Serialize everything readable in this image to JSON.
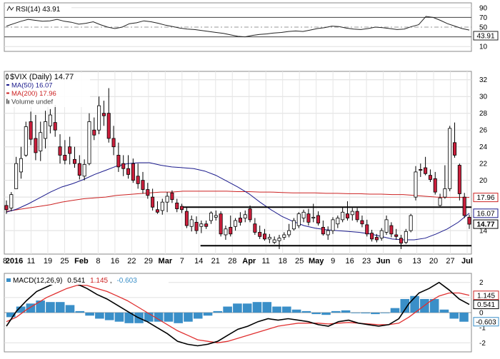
{
  "chart_data": {
    "type": "candlestick",
    "symbol_label": "$VIX (Daily) 14.77",
    "x_tick_labels": [
      "8",
      "2016",
      "11",
      "19",
      "25",
      "Feb",
      "8",
      "16",
      "22",
      "29",
      "Mar",
      "7",
      "14",
      "21",
      "28",
      "Apr",
      "11",
      "18",
      "25",
      "May",
      "9",
      "16",
      "23",
      "Jun",
      "6",
      "13",
      "20",
      "27",
      "Jul"
    ],
    "price_axis": {
      "ticks": [
        32,
        30,
        28,
        26,
        24,
        22,
        20,
        18,
        16,
        14
      ],
      "range": [
        11.2,
        33
      ]
    },
    "price_markers": [
      {
        "label": "17.96",
        "value": 17.96,
        "color": "#cc2222"
      },
      {
        "label": "16.07",
        "value": 16.07,
        "color": "#1a1a8c"
      },
      {
        "label": "14.77",
        "value": 14.77,
        "color": "#000000"
      }
    ],
    "moving_averages": [
      {
        "name": "MA(50) 16.07",
        "color": "#1a1a8c",
        "values": [
          16.2,
          16.6,
          17.2,
          17.9,
          18.6,
          19.2,
          19.6,
          20.1,
          20.7,
          21.2,
          21.7,
          22.0,
          22.1,
          22.1,
          21.8,
          21.6,
          21.5,
          21.4,
          21.1,
          20.6,
          19.9,
          19.2,
          18.4,
          17.4,
          16.5,
          15.7,
          15.1,
          14.6,
          14.3,
          14.1,
          14.0,
          13.9,
          13.8,
          13.6,
          13.3,
          13.0,
          12.9,
          12.9,
          13.1,
          13.6,
          14.2,
          15.0,
          16.07
        ]
      },
      {
        "name": "MA(200) 17.96",
        "color": "#cc2222",
        "values": [
          16.3,
          16.5,
          16.7,
          16.9,
          17.1,
          17.4,
          17.6,
          17.8,
          17.9,
          18.0,
          18.2,
          18.3,
          18.4,
          18.5,
          18.6,
          18.6,
          18.7,
          18.7,
          18.7,
          18.7,
          18.7,
          18.65,
          18.65,
          18.6,
          18.6,
          18.55,
          18.5,
          18.5,
          18.5,
          18.45,
          18.45,
          18.4,
          18.4,
          18.35,
          18.35,
          18.3,
          18.3,
          18.2,
          18.1,
          18.0,
          17.96,
          17.96,
          17.96
        ]
      }
    ],
    "candles": [
      {
        "o": 17.0,
        "h": 17.6,
        "l": 16.0,
        "c": 16.5
      },
      {
        "o": 16.7,
        "h": 18.6,
        "l": 16.3,
        "c": 18.3
      },
      {
        "o": 19.0,
        "h": 22.8,
        "l": 19.0,
        "c": 22.0
      },
      {
        "o": 21.0,
        "h": 24.0,
        "l": 20.2,
        "c": 22.6
      },
      {
        "o": 23.0,
        "h": 27.0,
        "l": 22.8,
        "c": 26.4
      },
      {
        "o": 27.0,
        "h": 28.2,
        "l": 24.2,
        "c": 24.9
      },
      {
        "o": 25.0,
        "h": 27.8,
        "l": 22.4,
        "c": 23.3
      },
      {
        "o": 23.5,
        "h": 27.0,
        "l": 22.3,
        "c": 25.7
      },
      {
        "o": 25.0,
        "h": 28.3,
        "l": 23.8,
        "c": 27.0
      },
      {
        "o": 26.5,
        "h": 28.5,
        "l": 25.6,
        "c": 27.8
      },
      {
        "o": 26.9,
        "h": 29.0,
        "l": 25.2,
        "c": 26.0
      },
      {
        "o": 24.0,
        "h": 25.5,
        "l": 22.0,
        "c": 23.0
      },
      {
        "o": 23.0,
        "h": 24.8,
        "l": 21.9,
        "c": 22.4
      },
      {
        "o": 24.0,
        "h": 25.2,
        "l": 21.9,
        "c": 23.2
      },
      {
        "o": 22.5,
        "h": 24.0,
        "l": 21.5,
        "c": 22.0
      },
      {
        "o": 22.0,
        "h": 23.0,
        "l": 20.1,
        "c": 20.6
      },
      {
        "o": 20.5,
        "h": 22.5,
        "l": 20.0,
        "c": 21.9
      },
      {
        "o": 22.0,
        "h": 28.0,
        "l": 21.8,
        "c": 27.0
      },
      {
        "o": 26.0,
        "h": 27.5,
        "l": 24.8,
        "c": 25.4
      },
      {
        "o": 26.0,
        "h": 30.0,
        "l": 25.5,
        "c": 28.9
      },
      {
        "o": 28.0,
        "h": 29.5,
        "l": 26.5,
        "c": 27.7
      },
      {
        "o": 28.0,
        "h": 31.0,
        "l": 24.5,
        "c": 25.0
      },
      {
        "o": 25.0,
        "h": 26.5,
        "l": 23.0,
        "c": 24.0
      },
      {
        "o": 23.0,
        "h": 24.5,
        "l": 21.0,
        "c": 21.6
      },
      {
        "o": 22.0,
        "h": 23.0,
        "l": 20.5,
        "c": 21.4
      },
      {
        "o": 21.4,
        "h": 23.0,
        "l": 20.2,
        "c": 20.7
      },
      {
        "o": 22.0,
        "h": 22.6,
        "l": 19.7,
        "c": 20.0
      },
      {
        "o": 20.5,
        "h": 22.0,
        "l": 19.0,
        "c": 19.6
      },
      {
        "o": 20.0,
        "h": 21.0,
        "l": 18.4,
        "c": 18.9
      },
      {
        "o": 18.9,
        "h": 19.7,
        "l": 17.8,
        "c": 18.2
      },
      {
        "o": 18.0,
        "h": 19.0,
        "l": 16.4,
        "c": 16.8
      },
      {
        "o": 16.5,
        "h": 17.5,
        "l": 16.0,
        "c": 16.2
      },
      {
        "o": 16.4,
        "h": 17.8,
        "l": 15.9,
        "c": 17.4
      },
      {
        "o": 17.4,
        "h": 18.6,
        "l": 16.2,
        "c": 18.1
      },
      {
        "o": 18.5,
        "h": 18.8,
        "l": 17.3,
        "c": 17.7
      },
      {
        "o": 17.3,
        "h": 17.8,
        "l": 16.2,
        "c": 16.6
      },
      {
        "o": 16.9,
        "h": 17.2,
        "l": 16.1,
        "c": 16.5
      },
      {
        "o": 16.3,
        "h": 16.8,
        "l": 14.3,
        "c": 14.6
      },
      {
        "o": 14.5,
        "h": 15.8,
        "l": 13.9,
        "c": 15.3
      },
      {
        "o": 15.0,
        "h": 15.7,
        "l": 13.6,
        "c": 14.0
      },
      {
        "o": 14.5,
        "h": 15.2,
        "l": 13.7,
        "c": 14.8
      },
      {
        "o": 14.8,
        "h": 15.2,
        "l": 14.2,
        "c": 14.5
      },
      {
        "o": 15.2,
        "h": 16.3,
        "l": 14.8,
        "c": 16.1
      },
      {
        "o": 15.6,
        "h": 16.4,
        "l": 15.2,
        "c": 15.8
      },
      {
        "o": 16.0,
        "h": 16.3,
        "l": 13.3,
        "c": 13.6
      },
      {
        "o": 13.5,
        "h": 14.6,
        "l": 12.9,
        "c": 14.2
      },
      {
        "o": 14.4,
        "h": 15.8,
        "l": 13.3,
        "c": 13.6
      },
      {
        "o": 14.5,
        "h": 15.5,
        "l": 14.0,
        "c": 15.2
      },
      {
        "o": 15.5,
        "h": 16.2,
        "l": 14.6,
        "c": 15.0
      },
      {
        "o": 15.5,
        "h": 16.4,
        "l": 15.0,
        "c": 15.9
      },
      {
        "o": 16.6,
        "h": 17.0,
        "l": 15.0,
        "c": 15.3
      },
      {
        "o": 14.8,
        "h": 15.5,
        "l": 13.5,
        "c": 13.8
      },
      {
        "o": 13.8,
        "h": 14.6,
        "l": 13.0,
        "c": 13.3
      },
      {
        "o": 13.6,
        "h": 14.2,
        "l": 12.8,
        "c": 13.0
      },
      {
        "o": 13.0,
        "h": 13.6,
        "l": 12.5,
        "c": 13.2
      },
      {
        "o": 12.6,
        "h": 13.3,
        "l": 12.4,
        "c": 12.9
      },
      {
        "o": 12.8,
        "h": 13.5,
        "l": 11.8,
        "c": 13.1
      },
      {
        "o": 13.2,
        "h": 13.8,
        "l": 12.9,
        "c": 13.5
      },
      {
        "o": 13.5,
        "h": 14.8,
        "l": 13.2,
        "c": 14.0
      },
      {
        "o": 14.2,
        "h": 15.5,
        "l": 14.0,
        "c": 15.2
      },
      {
        "o": 14.6,
        "h": 16.2,
        "l": 14.3,
        "c": 16.0
      },
      {
        "o": 15.5,
        "h": 16.5,
        "l": 15.0,
        "c": 16.2
      },
      {
        "o": 16.0,
        "h": 16.6,
        "l": 14.6,
        "c": 15.0
      },
      {
        "o": 15.5,
        "h": 17.2,
        "l": 15.0,
        "c": 15.6
      },
      {
        "o": 15.8,
        "h": 16.3,
        "l": 14.6,
        "c": 14.9
      },
      {
        "o": 14.4,
        "h": 15.2,
        "l": 13.4,
        "c": 13.6
      },
      {
        "o": 13.5,
        "h": 14.5,
        "l": 12.9,
        "c": 14.0
      },
      {
        "o": 14.0,
        "h": 15.6,
        "l": 13.6,
        "c": 15.3
      },
      {
        "o": 14.8,
        "h": 15.8,
        "l": 14.3,
        "c": 15.5
      },
      {
        "o": 15.3,
        "h": 16.8,
        "l": 15.0,
        "c": 16.2
      },
      {
        "o": 16.0,
        "h": 17.5,
        "l": 15.2,
        "c": 15.5
      },
      {
        "o": 15.9,
        "h": 16.7,
        "l": 15.2,
        "c": 16.3
      },
      {
        "o": 16.3,
        "h": 16.7,
        "l": 15.0,
        "c": 15.3
      },
      {
        "o": 15.2,
        "h": 15.8,
        "l": 14.4,
        "c": 14.8
      },
      {
        "o": 14.7,
        "h": 15.3,
        "l": 13.3,
        "c": 13.6
      },
      {
        "o": 13.7,
        "h": 14.1,
        "l": 12.7,
        "c": 13.0
      },
      {
        "o": 13.2,
        "h": 13.6,
        "l": 12.6,
        "c": 12.9
      },
      {
        "o": 13.1,
        "h": 14.3,
        "l": 12.8,
        "c": 14.0
      },
      {
        "o": 13.8,
        "h": 15.8,
        "l": 13.5,
        "c": 15.3
      },
      {
        "o": 14.6,
        "h": 15.0,
        "l": 13.2,
        "c": 13.6
      },
      {
        "o": 13.5,
        "h": 14.2,
        "l": 12.9,
        "c": 13.3
      },
      {
        "o": 13.1,
        "h": 13.5,
        "l": 11.8,
        "c": 12.5
      },
      {
        "o": 12.6,
        "h": 14.2,
        "l": 12.4,
        "c": 13.9
      },
      {
        "o": 14.0,
        "h": 16.0,
        "l": 13.8,
        "c": 15.8
      },
      {
        "o": 18.0,
        "h": 21.7,
        "l": 17.6,
        "c": 21.0
      },
      {
        "o": 21.3,
        "h": 22.0,
        "l": 20.4,
        "c": 21.2
      },
      {
        "o": 21.5,
        "h": 22.8,
        "l": 20.6,
        "c": 20.8
      },
      {
        "o": 20.6,
        "h": 21.3,
        "l": 19.8,
        "c": 20.1
      },
      {
        "o": 20.2,
        "h": 21.0,
        "l": 18.3,
        "c": 18.6
      },
      {
        "o": 17.0,
        "h": 18.4,
        "l": 16.9,
        "c": 17.9
      },
      {
        "o": 18.0,
        "h": 21.8,
        "l": 17.8,
        "c": 19.0
      },
      {
        "o": 19.0,
        "h": 26.5,
        "l": 18.7,
        "c": 26.2
      },
      {
        "o": 24.5,
        "h": 26.9,
        "l": 22.7,
        "c": 23.0
      },
      {
        "o": 21.8,
        "h": 22.0,
        "l": 17.6,
        "c": 18.4
      },
      {
        "o": 18.0,
        "h": 18.5,
        "l": 15.5,
        "c": 15.8
      },
      {
        "o": 15.6,
        "h": 15.9,
        "l": 14.2,
        "c": 14.77
      }
    ],
    "horizontal_lines": [
      {
        "name": "resistance",
        "value": 16.8,
        "x_from": 0.38,
        "x_to": 1.0
      },
      {
        "name": "support",
        "value": 12.2,
        "x_from": 0.42,
        "x_to": 1.0
      }
    ],
    "legend": [
      {
        "label": "$VIX (Daily) 14.77",
        "color": "#000000",
        "swatch": "none"
      },
      {
        "label": "MA(50) 16.07",
        "color": "#1a1a8c",
        "swatch": "line"
      },
      {
        "label": "MA(200) 17.96",
        "color": "#cc2222",
        "swatch": "line"
      },
      {
        "label": "Volume undef",
        "color": "#444444",
        "swatch": "bars"
      }
    ],
    "rsi": {
      "title": "RSI(14) 43.91",
      "ticks": [
        90,
        70,
        50,
        30,
        10
      ],
      "levels": [
        70,
        30
      ],
      "current_label": "43.91",
      "range": [
        0,
        100
      ],
      "values": [
        52,
        57,
        62,
        66,
        64,
        62,
        63,
        66,
        62,
        60,
        56,
        58,
        61,
        55,
        50,
        47,
        50,
        57,
        59,
        63,
        61,
        58,
        54,
        51,
        48,
        46,
        45,
        43,
        41,
        39,
        37,
        34,
        31,
        30,
        33,
        35,
        36,
        38,
        39,
        41,
        42,
        41,
        44,
        47,
        49,
        52,
        51,
        48,
        46,
        45,
        47,
        50,
        49,
        47,
        45,
        46,
        51,
        55,
        72,
        70,
        64,
        57,
        52,
        47,
        43.91
      ]
    },
    "macd": {
      "title_prefix": "MACD(12,26,9)",
      "macd_value": "0.541",
      "signal_value": "1.145",
      "hist_value": "-0.603",
      "ticks": [
        "2",
        "1",
        "0",
        "-1",
        "-2"
      ],
      "range": [
        -2.6,
        2.6
      ],
      "markers": [
        {
          "label": "1.145",
          "value": 1.145,
          "color": "#cc2222"
        },
        {
          "label": "0.541",
          "value": 0.541,
          "color": "#000000"
        },
        {
          "label": "-0.603",
          "value": -0.603,
          "color": "#3a8fc8"
        }
      ],
      "macd": [
        -0.9,
        0.1,
        0.8,
        1.4,
        1.7,
        2.0,
        2.1,
        1.9,
        1.6,
        1.2,
        0.9,
        0.5,
        0.1,
        -0.3,
        -0.6,
        -1.0,
        -1.4,
        -1.9,
        -2.1,
        -2.2,
        -2.1,
        -1.9,
        -1.5,
        -1.1,
        -0.9,
        -0.6,
        -0.4,
        -0.5,
        -0.4,
        -0.5,
        -0.6,
        -0.8,
        -0.9,
        -0.6,
        -0.5,
        -0.7,
        -0.8,
        -0.9,
        -0.8,
        -0.4,
        0.6,
        1.3,
        1.6,
        2.0,
        1.5,
        0.9,
        0.541
      ],
      "signal": [
        -0.6,
        -0.3,
        0.2,
        0.6,
        1.0,
        1.3,
        1.6,
        1.8,
        1.8,
        1.6,
        1.4,
        1.1,
        0.8,
        0.4,
        0.0,
        -0.4,
        -0.8,
        -1.2,
        -1.5,
        -1.8,
        -1.9,
        -2.0,
        -1.9,
        -1.7,
        -1.5,
        -1.3,
        -1.1,
        -0.9,
        -0.8,
        -0.7,
        -0.7,
        -0.7,
        -0.75,
        -0.7,
        -0.65,
        -0.7,
        -0.75,
        -0.8,
        -0.8,
        -0.7,
        -0.3,
        0.2,
        0.7,
        1.1,
        1.3,
        1.3,
        1.145
      ],
      "histogram": [
        -0.3,
        0.4,
        0.6,
        0.8,
        0.7,
        0.7,
        0.5,
        0.1,
        -0.2,
        -0.4,
        -0.5,
        -0.6,
        -0.7,
        -0.7,
        -0.6,
        -0.6,
        -0.6,
        -0.7,
        -0.6,
        -0.4,
        -0.2,
        0.1,
        0.4,
        0.6,
        0.6,
        0.7,
        0.7,
        0.4,
        0.4,
        0.2,
        0.1,
        -0.1,
        -0.15,
        0.1,
        0.15,
        0.0,
        -0.05,
        -0.1,
        0.0,
        0.3,
        0.9,
        1.1,
        0.9,
        0.9,
        0.2,
        -0.4,
        -0.603
      ]
    }
  }
}
